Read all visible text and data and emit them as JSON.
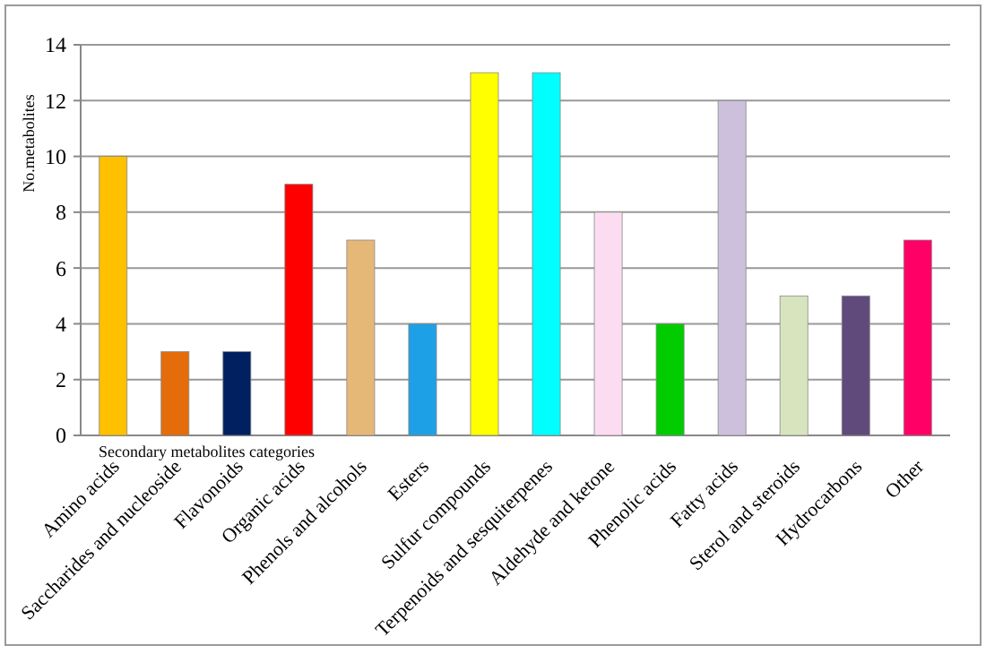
{
  "chart_data": {
    "type": "bar",
    "xlabel": "Secondary metabolites categories",
    "ylabel": "No.metabolites",
    "categories": [
      "Amino acids",
      "Saccharides and nucleoside",
      "Flavonoids",
      "Organic acids",
      "Phenols and alcohols",
      "Esters",
      "Sulfur compounds",
      "Terpenoids and sesquiterpenes",
      "Aldehyde and ketone",
      "Phenolic acids",
      "Fatty acids",
      "Sterol and steroids",
      "Hydrocarbons",
      "Other"
    ],
    "values": [
      10,
      3,
      3,
      9,
      7,
      4,
      13,
      13,
      8,
      4,
      12,
      5,
      5,
      7
    ],
    "colors": [
      "#ffc000",
      "#e46c0a",
      "#002060",
      "#ff0000",
      "#e6b878",
      "#1ea0e6",
      "#ffff00",
      "#00ffff",
      "#fcdcf0",
      "#00cc00",
      "#ccc0dc",
      "#d7e4bd",
      "#604a7b",
      "#ff0066"
    ],
    "ylim": [
      0,
      14
    ],
    "yticks": [
      0,
      2,
      4,
      6,
      8,
      10,
      12,
      14
    ],
    "grid": "y"
  }
}
